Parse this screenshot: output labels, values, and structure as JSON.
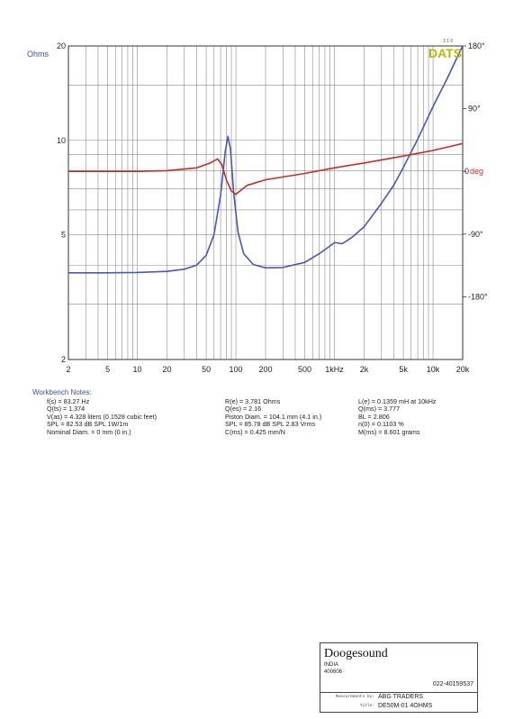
{
  "chart_data": {
    "type": "line",
    "brand": "DATS",
    "brand_small": "3 1 6",
    "left_axis": {
      "unit_label": "Ohms",
      "scale": "log",
      "range": [
        2,
        20
      ],
      "tick_labels": [
        {
          "value": 20,
          "label": "20"
        },
        {
          "value": 10,
          "label": "10"
        },
        {
          "value": 5,
          "label": "5"
        },
        {
          "value": 2,
          "label": "2"
        }
      ]
    },
    "right_axis": {
      "unit_label": "deg",
      "range": [
        -270,
        180
      ],
      "tick_labels": [
        {
          "value": 180,
          "label": "180°"
        },
        {
          "value": 90,
          "label": "90°"
        },
        {
          "value": 0,
          "label": "0"
        },
        {
          "value": -90,
          "label": "-90°"
        },
        {
          "value": -180,
          "label": "-180°"
        }
      ]
    },
    "x_axis": {
      "scale": "log",
      "range": [
        2,
        20000
      ],
      "tick_labels": [
        {
          "value": 2,
          "label": "2"
        },
        {
          "value": 5,
          "label": "5"
        },
        {
          "value": 10,
          "label": "10"
        },
        {
          "value": 20,
          "label": "20"
        },
        {
          "value": 50,
          "label": "50"
        },
        {
          "value": 100,
          "label": "100"
        },
        {
          "value": 200,
          "label": "200"
        },
        {
          "value": 500,
          "label": "500"
        },
        {
          "value": 1000,
          "label": "1kHz"
        },
        {
          "value": 2000,
          "label": "2k"
        },
        {
          "value": 5000,
          "label": "5k"
        },
        {
          "value": 10000,
          "label": "10k"
        },
        {
          "value": 20000,
          "label": "20k"
        }
      ]
    },
    "grid": true,
    "series": [
      {
        "axis": "left",
        "color": "#4a56b8",
        "points": [
          [
            2,
            3.78
          ],
          [
            5,
            3.78
          ],
          [
            10,
            3.79
          ],
          [
            20,
            3.82
          ],
          [
            30,
            3.88
          ],
          [
            40,
            4.0
          ],
          [
            50,
            4.3
          ],
          [
            60,
            5.0
          ],
          [
            70,
            6.7
          ],
          [
            78,
            9.2
          ],
          [
            83,
            10.3
          ],
          [
            88,
            9.4
          ],
          [
            95,
            6.8
          ],
          [
            105,
            5.1
          ],
          [
            120,
            4.35
          ],
          [
            150,
            4.02
          ],
          [
            200,
            3.92
          ],
          [
            300,
            3.93
          ],
          [
            500,
            4.08
          ],
          [
            700,
            4.35
          ],
          [
            900,
            4.6
          ],
          [
            1000,
            4.72
          ],
          [
            1200,
            4.68
          ],
          [
            1500,
            4.9
          ],
          [
            2000,
            5.3
          ],
          [
            3000,
            6.3
          ],
          [
            4000,
            7.2
          ],
          [
            5000,
            8.2
          ],
          [
            7000,
            10.1
          ],
          [
            10000,
            12.8
          ],
          [
            14000,
            15.8
          ],
          [
            17000,
            18.0
          ],
          [
            20000,
            20.0
          ]
        ]
      },
      {
        "axis": "right",
        "color": "#c0302a",
        "points": [
          [
            2,
            0
          ],
          [
            10,
            0
          ],
          [
            20,
            1
          ],
          [
            40,
            5
          ],
          [
            55,
            12
          ],
          [
            65,
            18
          ],
          [
            72,
            10
          ],
          [
            80,
            -12
          ],
          [
            90,
            -28
          ],
          [
            100,
            -33
          ],
          [
            110,
            -28
          ],
          [
            130,
            -20
          ],
          [
            200,
            -12
          ],
          [
            500,
            -3
          ],
          [
            1000,
            5
          ],
          [
            2000,
            12
          ],
          [
            5000,
            22
          ],
          [
            10000,
            30
          ],
          [
            20000,
            40
          ]
        ]
      }
    ]
  },
  "notes": {
    "title": "Workbench Notes:",
    "col1": [
      "f(s) = 83.27 Hz",
      "Q(ts) = 1.374",
      "V(as) = 4.328 liters  (0.1528 cubic feet)",
      "SPL = 82.53 dB SPL 1W/1m",
      "Nominal Diam. = 0 mm (0 in.)"
    ],
    "col2": [
      "R(e) = 3.781 Ohms",
      "Q(es) = 2.16",
      "Piston Diam. = 104.1 mm (4.1 in.)",
      "SPL = 85.78 dB SPL 2.83 Vrms",
      "C(ms) = 0.425 mm/N"
    ],
    "col3": [
      "L(e) = 0.1359 mH at 10kHz",
      "Q(ms) = 3.777",
      "BL = 2.806",
      "n(0) = 0.1103 %",
      "M(ms) = 8.601 grams"
    ]
  },
  "title_block": {
    "company": "Doogesound",
    "country": "INDIA",
    "postcode": "400606",
    "phone": "022-40159537",
    "measurements_by_label": "Measurements by:",
    "measurements_by": "ABG TRADERS",
    "title_label": "Title:",
    "title": "DE50M-01 4OHMS"
  },
  "colors": {
    "impedance": "#4a56b8",
    "phase": "#c0302a",
    "ohms_label": "#3a4db8",
    "brand": "#b8b800",
    "grid": "#8a8a8a"
  }
}
